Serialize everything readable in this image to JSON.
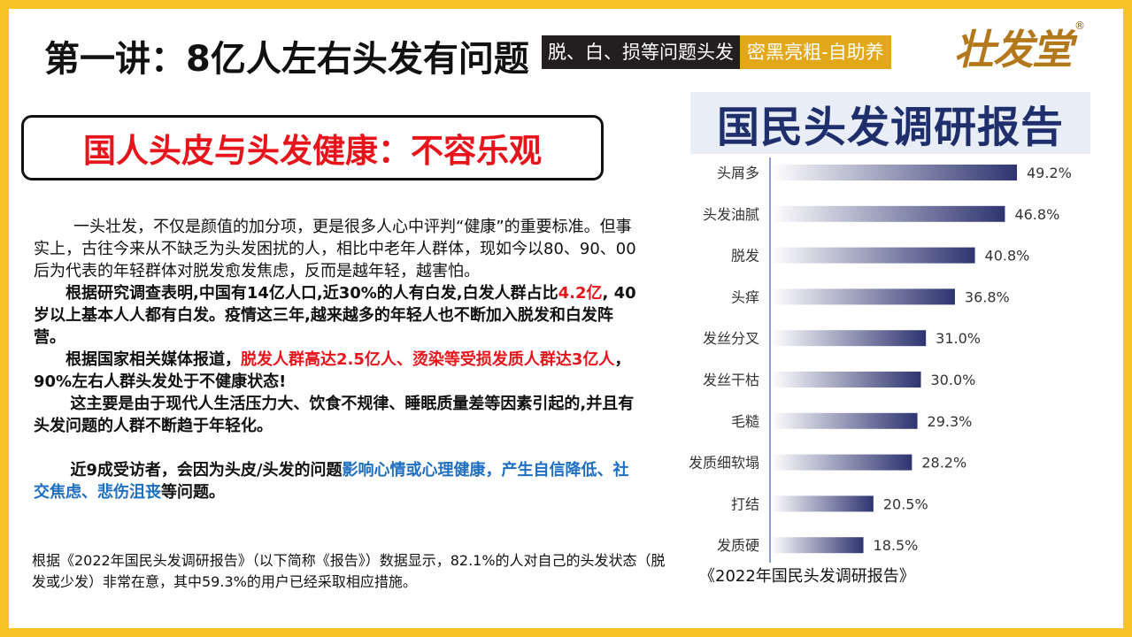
{
  "header": {
    "title": "第一讲：8亿人左右头发有问题",
    "tag_dark": "脱、白、损等问题头发",
    "tag_gold": "密黑亮粗-自助养",
    "brand": "壮发堂",
    "brand_mark": "®"
  },
  "subtitle": "国人头皮与头发健康：不容乐观",
  "body": {
    "p1": "一头壮发，不仅是颜值的加分项，更是很多人心中评判“健康”的重要标准。但事实上，古往今来从不缺乏为头发困扰的人，相比中老年人群体，现如今以80、90、00后为代表的年轻群体对脱发愈发焦虑，反而是越年轻，越害怕。",
    "p2a": "根据研究调查表明,中国有14亿人口,近30%的人有白发,白发人群占比",
    "p2b": "4.2亿",
    "p2c": ", 40岁以上基本人人都有白发。疫情这三年,越来越多的年轻人也不断加入脱发和白发阵营。",
    "p3a": "根据国家相关媒体报道，",
    "p3b": "脱发人群高达2.5亿人、烫染等受损发质人群达3亿人",
    "p3c": "，90%左右人群头发处于不健康状态!",
    "p4": "这主要是由于现代人生活压力大、饮食不规律、睡眠质量差等因素引起的,并且有头发问题的人群不断趋于年轻化。",
    "p5a": "近9成受访者，会因为头皮/头发的问题",
    "p5b": "影响心情或心理健康，产生自信降低、社交焦虑、悲伤沮丧",
    "p5c": "等问题。",
    "footnote": "根据《2022年国民头发调研报告》（以下简称《报告》）数据显示，82.1%的人对自己的头发状态（脱发或少发）非常在意，其中59.3%的用户已经采取相应措施。"
  },
  "report": {
    "title": "国民头发调研报告",
    "caption": "《2022年国民头发调研报告》"
  },
  "chart_data": {
    "type": "bar",
    "orientation": "horizontal",
    "title": "国民头发调研报告",
    "categories": [
      "头屑多",
      "头发油腻",
      "脱发",
      "头痒",
      "发丝分叉",
      "发丝干枯",
      "毛糙",
      "发质细软塌",
      "打结",
      "发质硬"
    ],
    "values": [
      49.2,
      46.8,
      40.8,
      36.8,
      31.0,
      30.0,
      29.3,
      28.2,
      20.5,
      18.5
    ],
    "value_labels": [
      "49.2%",
      "46.8%",
      "40.8%",
      "36.8%",
      "31.0%",
      "30.0%",
      "29.3%",
      "28.2%",
      "20.5%",
      "18.5%"
    ],
    "unit": "%",
    "xlim": [
      0,
      49.2
    ],
    "grid": false,
    "colors": {
      "bar_start": "#ffffff",
      "bar_end": "#2e3470",
      "axis": "#6a7fc4"
    }
  }
}
